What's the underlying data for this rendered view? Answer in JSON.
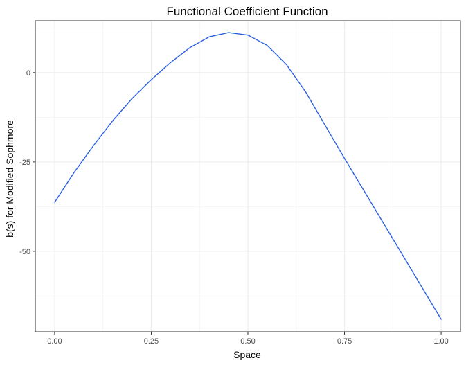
{
  "chart_data": {
    "type": "line",
    "title": "Functional Coefficient Function",
    "xlabel": "Space",
    "ylabel": "b(s) for Modified Sophmore",
    "xlim": [
      -0.05,
      1.05
    ],
    "ylim": [
      -72.5,
      14.5
    ],
    "x_ticks": [
      {
        "value": 0.0,
        "label": "0.00"
      },
      {
        "value": 0.25,
        "label": "0.25"
      },
      {
        "value": 0.5,
        "label": "0.50"
      },
      {
        "value": 0.75,
        "label": "0.75"
      },
      {
        "value": 1.0,
        "label": "1.00"
      }
    ],
    "y_ticks": [
      {
        "value": 0,
        "label": "0"
      },
      {
        "value": -25,
        "label": "-25"
      },
      {
        "value": -50,
        "label": "-50"
      }
    ],
    "grid": true,
    "series": [
      {
        "color": "#2a5fe0",
        "x": [
          0.0,
          0.05,
          0.1,
          0.15,
          0.2,
          0.25,
          0.3,
          0.35,
          0.4,
          0.45,
          0.5,
          0.55,
          0.6,
          0.65,
          0.7,
          0.75,
          0.8,
          0.85,
          0.9,
          0.95,
          1.0
        ],
        "y": [
          -36.3,
          -28.0,
          -20.5,
          -13.5,
          -7.3,
          -2.0,
          2.8,
          7.0,
          10.0,
          11.2,
          10.5,
          7.6,
          2.2,
          -5.5,
          -14.8,
          -24.0,
          -33.0,
          -42.0,
          -51.0,
          -60.0,
          -69.0
        ]
      }
    ]
  }
}
